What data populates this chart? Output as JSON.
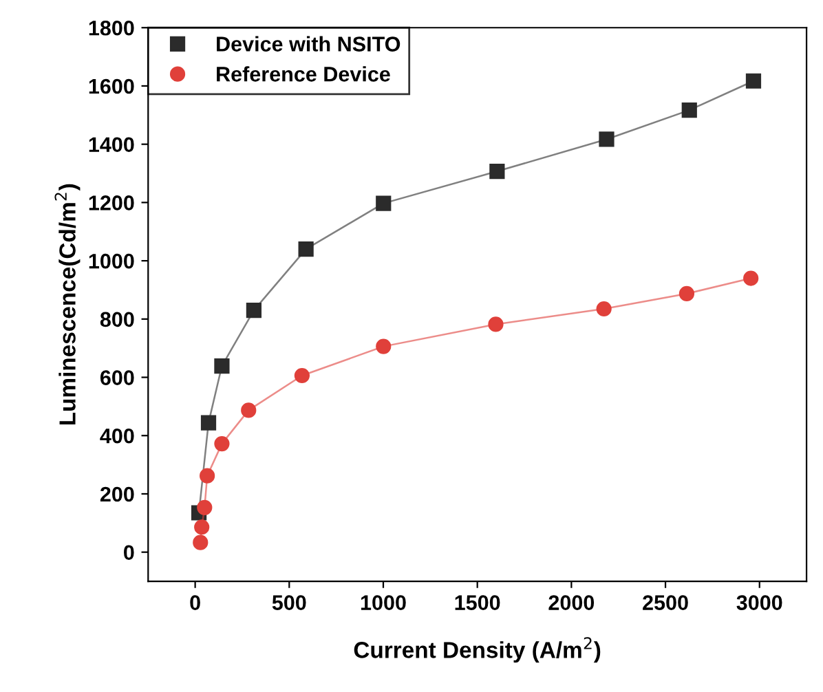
{
  "chart_data": {
    "type": "line",
    "xlabel": "Current Density (A/m$^{2}$)",
    "ylabel": "Luminescence(Cd/m$^{2}$)",
    "xlim": [
      -250,
      3250
    ],
    "ylim": [
      -100,
      1800
    ],
    "xticks": [
      0,
      500,
      1000,
      1500,
      2000,
      2500,
      3000
    ],
    "yticks": [
      0,
      200,
      400,
      600,
      800,
      1000,
      1200,
      1400,
      1600,
      1800
    ],
    "legend": "top left",
    "grid": false,
    "series": [
      {
        "name": "Device with NSITO",
        "color": "#2b2b2b",
        "marker": "square",
        "x": [
          20,
          71,
          142,
          312,
          589,
          1001,
          1605,
          2187,
          2627,
          2968
        ],
        "values": [
          135,
          444,
          639,
          830,
          1040,
          1197,
          1307,
          1417,
          1517,
          1617
        ]
      },
      {
        "name": "Reference Device",
        "color": "#e0403a",
        "marker": "circle",
        "x": [
          28,
          35,
          50,
          64,
          142,
          284,
          568,
          1001,
          1598,
          2173,
          2613,
          2954
        ],
        "values": [
          33,
          86,
          153,
          262,
          372,
          487,
          606,
          706,
          782,
          835,
          887,
          940
        ]
      }
    ]
  }
}
